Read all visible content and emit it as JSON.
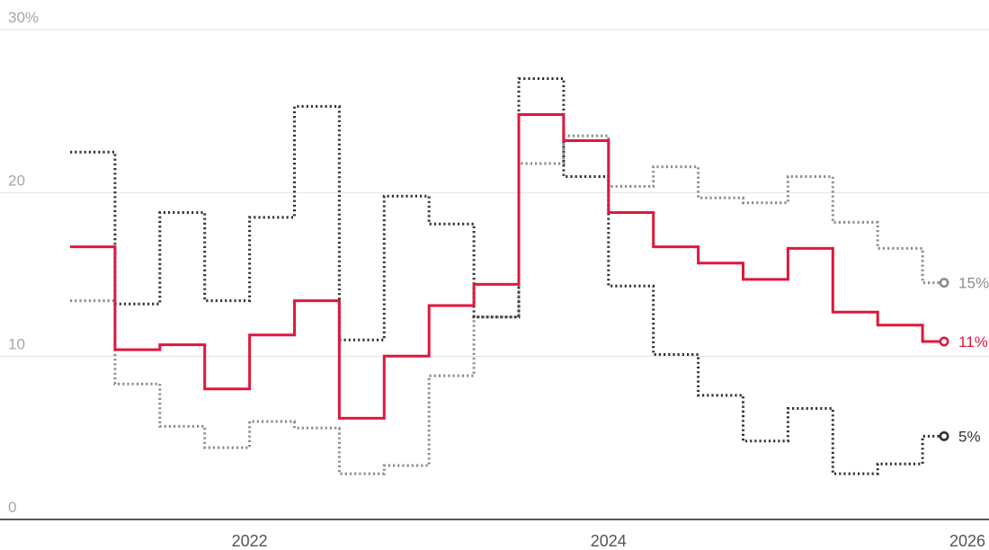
{
  "chart_data": {
    "type": "line",
    "step": "post",
    "x_axis": {
      "range": [
        2021.0,
        2026.0
      ],
      "ticks": [
        2022,
        2024,
        2026
      ],
      "tick_labels": [
        "2022",
        "2024",
        "2026"
      ]
    },
    "y_axis": {
      "range": [
        0,
        30
      ],
      "ticks": [
        0,
        10,
        20,
        30
      ],
      "tick_labels": [
        "0",
        "10",
        "20",
        "30%"
      ]
    },
    "grid": true,
    "x": [
      2021.0,
      2021.25,
      2021.5,
      2021.75,
      2022.0,
      2022.25,
      2022.5,
      2022.75,
      2023.0,
      2023.25,
      2023.5,
      2023.75,
      2024.0,
      2024.25,
      2024.5,
      2024.75,
      2025.0,
      2025.25,
      2025.5,
      2025.75,
      2025.87
    ],
    "series": [
      {
        "color": "#e0173c",
        "dash": "solid",
        "end_label": "11%",
        "values": [
          16.7,
          10.4,
          10.7,
          8.0,
          11.3,
          13.4,
          6.2,
          10.0,
          13.1,
          14.4,
          24.8,
          23.2,
          18.8,
          16.7,
          15.7,
          14.7,
          16.6,
          12.7,
          11.9,
          10.9,
          10.9
        ]
      },
      {
        "color": "#8c8c8c",
        "dash": "dotted",
        "end_label": "15%",
        "values": [
          13.4,
          8.3,
          5.7,
          4.4,
          6.0,
          5.6,
          2.8,
          3.3,
          8.8,
          12.4,
          21.8,
          23.5,
          20.4,
          21.6,
          19.7,
          19.4,
          21.0,
          18.2,
          16.6,
          14.5,
          14.5
        ]
      },
      {
        "color": "#333333",
        "dash": "dotted",
        "end_label": "5%",
        "values": [
          22.5,
          13.2,
          18.8,
          13.4,
          18.5,
          25.3,
          11.0,
          19.8,
          18.1,
          12.4,
          27.0,
          21.0,
          14.3,
          10.1,
          7.6,
          4.8,
          6.8,
          2.8,
          3.4,
          5.1,
          5.1
        ]
      }
    ]
  }
}
